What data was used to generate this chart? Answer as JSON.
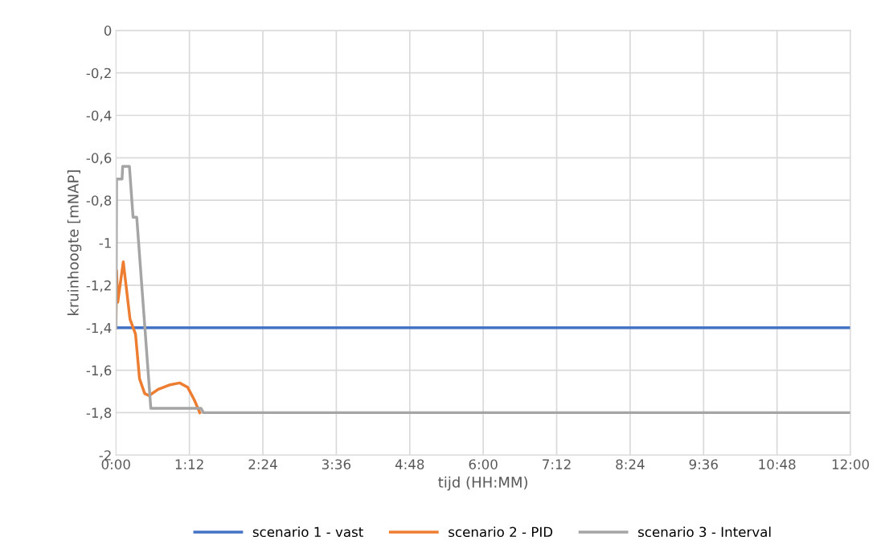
{
  "chart_data": {
    "type": "line",
    "xlabel": "tijd (HH:MM)",
    "ylabel": "kruinhoogte [mNAP]",
    "xlim": [
      0,
      12
    ],
    "ylim": [
      -2,
      0
    ],
    "xticks": [
      {
        "value": 0,
        "label": "0:00"
      },
      {
        "value": 1.2,
        "label": "1:12"
      },
      {
        "value": 2.4,
        "label": "2:24"
      },
      {
        "value": 3.6,
        "label": "3:36"
      },
      {
        "value": 4.8,
        "label": "4:48"
      },
      {
        "value": 6,
        "label": "6:00"
      },
      {
        "value": 7.2,
        "label": "7:12"
      },
      {
        "value": 8.4,
        "label": "8:24"
      },
      {
        "value": 9.6,
        "label": "9:36"
      },
      {
        "value": 10.8,
        "label": "10:48"
      },
      {
        "value": 12,
        "label": "12:00"
      }
    ],
    "yticks": [
      {
        "value": 0,
        "label": "0"
      },
      {
        "value": -0.2,
        "label": "-0,2"
      },
      {
        "value": -0.4,
        "label": "-0,4"
      },
      {
        "value": -0.6,
        "label": "-0,6"
      },
      {
        "value": -0.8,
        "label": "-0,8"
      },
      {
        "value": -1,
        "label": "-1"
      },
      {
        "value": -1.2,
        "label": "-1,2"
      },
      {
        "value": -1.4,
        "label": "-1,4"
      },
      {
        "value": -1.6,
        "label": "-1,6"
      },
      {
        "value": -1.8,
        "label": "-1,8"
      },
      {
        "value": -2,
        "label": "-2"
      }
    ],
    "grid": true,
    "legend": "bottom",
    "marker": "none",
    "line_style": "solid",
    "series": [
      {
        "name": "scenario 1 - vast",
        "color": "#4472c4",
        "x": [
          0,
          12
        ],
        "values": [
          -1.4,
          -1.4
        ]
      },
      {
        "name": "scenario 2 - PID",
        "color": "#ed7d31",
        "x": [
          0,
          0.01,
          0.03,
          0.12,
          0.23,
          0.32,
          0.385,
          0.47,
          0.54,
          0.69,
          0.87,
          1.04,
          1.17,
          1.28,
          1.37
        ],
        "values": [
          -1.4,
          -1.13,
          -1.28,
          -1.09,
          -1.36,
          -1.43,
          -1.64,
          -1.71,
          -1.72,
          -1.69,
          -1.67,
          -1.66,
          -1.68,
          -1.74,
          -1.8
        ]
      },
      {
        "name": "scenario 3 - Interval",
        "color": "#a5a5a5",
        "x": [
          0,
          0.01,
          0.1,
          0.11,
          0.22,
          0.28,
          0.34,
          0.57,
          1.39,
          1.43,
          12
        ],
        "values": [
          -1.4,
          -0.7,
          -0.7,
          -0.64,
          -0.64,
          -0.88,
          -0.88,
          -1.78,
          -1.78,
          -1.8,
          -1.8
        ]
      }
    ]
  }
}
